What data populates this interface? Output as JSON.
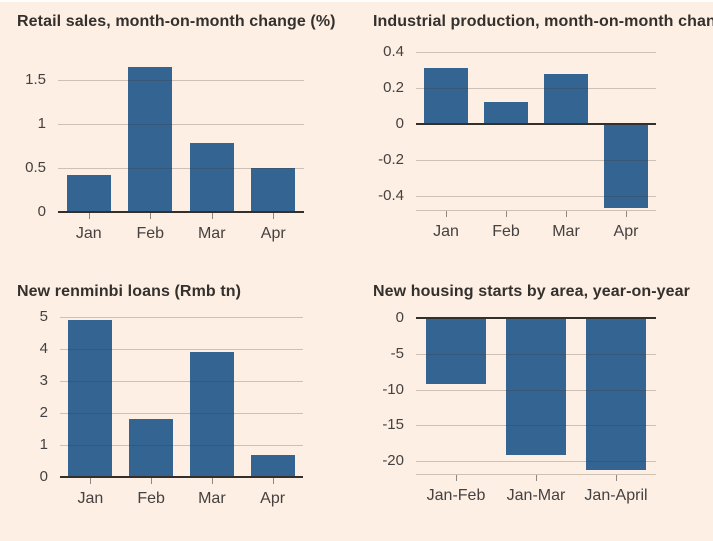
{
  "page": {
    "background_color": "#fdefe3",
    "top_edge_color": "#ffffff",
    "bar_color": "#346491",
    "gridline_color": "#ccc3b9",
    "axis_line_color": "#33302b",
    "tick_color": "#8f877e",
    "title_color": "#33302e",
    "label_color": "#454140"
  },
  "chart_data": [
    {
      "type": "bar",
      "title": "Retail sales, month-on-month change (%)",
      "categories": [
        "Jan",
        "Feb",
        "Mar",
        "Apr"
      ],
      "values": [
        0.42,
        1.64,
        0.78,
        0.5
      ],
      "ytick_values": [
        0,
        0.5,
        1,
        1.5
      ],
      "ytick_labels": [
        "0",
        "0.5",
        "1",
        "1.5"
      ],
      "ylim": [
        0,
        1.7
      ],
      "xlabel": "",
      "ylabel": "",
      "grid": true,
      "legend": "none"
    },
    {
      "type": "bar",
      "title": "Industrial production, month-on-month change (%)",
      "categories": [
        "Jan",
        "Feb",
        "Mar",
        "Apr"
      ],
      "values": [
        0.31,
        0.12,
        0.28,
        -0.47
      ],
      "ytick_values": [
        0.4,
        0.2,
        0,
        -0.2,
        -0.4
      ],
      "ytick_labels": [
        "0.4",
        "0.2",
        "0",
        "-0.2",
        "-0.4"
      ],
      "ylim": [
        -0.48,
        0.44
      ],
      "xlabel": "",
      "ylabel": "",
      "grid": true,
      "legend": "none"
    },
    {
      "type": "bar",
      "title": "New renminbi loans (Rmb tn)",
      "categories": [
        "Jan",
        "Feb",
        "Mar",
        "Apr"
      ],
      "values": [
        4.9,
        1.8,
        3.9,
        0.7
      ],
      "ytick_values": [
        0,
        1,
        2,
        3,
        4,
        5
      ],
      "ytick_labels": [
        "0",
        "1",
        "2",
        "3",
        "4",
        "5"
      ],
      "ylim": [
        0,
        5.1
      ],
      "xlabel": "",
      "ylabel": "",
      "grid": true,
      "legend": "none"
    },
    {
      "type": "bar",
      "title": "New housing starts by area, year-on-year",
      "categories": [
        "Jan-Feb",
        "Jan-Mar",
        "Jan-April"
      ],
      "values": [
        -9.2,
        -19.1,
        -21.2
      ],
      "ytick_values": [
        0,
        -5,
        -10,
        -15,
        -20
      ],
      "ytick_labels": [
        "0",
        "-5",
        "-10",
        "-15",
        "-20"
      ],
      "ylim": [
        -21.8,
        0
      ],
      "xlabel": "",
      "ylabel": "",
      "grid": true,
      "legend": "none"
    }
  ]
}
